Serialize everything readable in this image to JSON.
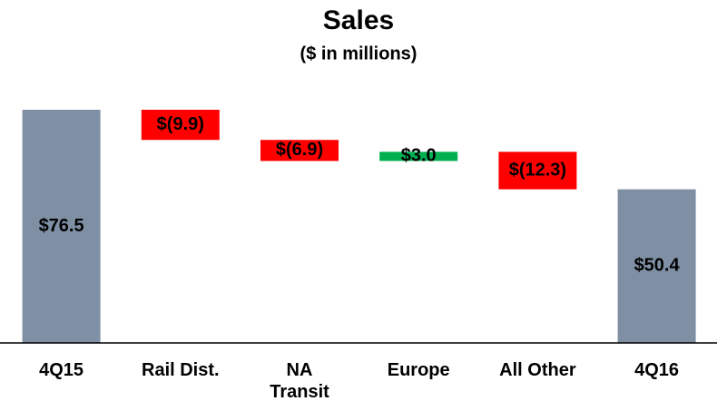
{
  "chart_data": {
    "type": "waterfall",
    "title": "Sales",
    "subtitle": "($ in millions)",
    "categories": [
      "4Q15",
      "Rail Dist.",
      "NA Transit",
      "Europe",
      "All Other",
      "4Q16"
    ],
    "values": [
      76.5,
      -9.9,
      -6.9,
      3.0,
      -12.3,
      50.4
    ],
    "value_labels": [
      "$76.5",
      "$(9.9)",
      "$(6.9)",
      "$3.0",
      "$(12.3)",
      "$50.4"
    ],
    "totals": [
      true,
      false,
      false,
      false,
      false,
      true
    ],
    "colors": {
      "total": "#7f8fa4",
      "increase": "#00b050",
      "decrease": "#ff0000"
    },
    "ylim": [
      0,
      80
    ]
  }
}
